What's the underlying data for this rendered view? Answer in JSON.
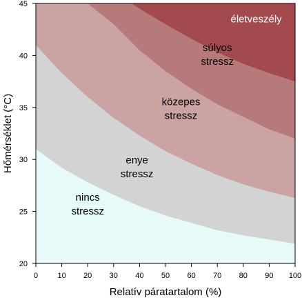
{
  "chart_data": {
    "type": "area",
    "title": "",
    "xlabel": "Relatív páratartalom (%)",
    "ylabel": "Hőmérséklet (°C)",
    "xlim": [
      0,
      100
    ],
    "ylim": [
      20,
      45
    ],
    "x_ticks": [
      0,
      10,
      20,
      30,
      40,
      50,
      60,
      70,
      80,
      90,
      100
    ],
    "y_ticks": [
      20,
      25,
      30,
      35,
      40,
      45
    ],
    "grid": false,
    "boundaries": [
      {
        "between": [
          "nincs stressz",
          "enye stressz"
        ],
        "x": [
          0,
          10,
          20,
          30,
          40,
          50,
          60,
          70,
          80,
          90,
          100
        ],
        "y": [
          31.0,
          29.2,
          27.8,
          26.6,
          25.5,
          24.6,
          23.9,
          23.2,
          22.7,
          22.3,
          21.9
        ]
      },
      {
        "between": [
          "enye stressz",
          "közepes stressz"
        ],
        "x": [
          0,
          10,
          20,
          30,
          40,
          50,
          60,
          70,
          80,
          90,
          100
        ],
        "y": [
          41.0,
          38.3,
          36.0,
          34.0,
          32.3,
          30.8,
          29.6,
          28.5,
          27.6,
          26.9,
          26.3
        ]
      },
      {
        "between": [
          "közepes stressz",
          "súlyos stressz"
        ],
        "x": [
          20,
          30,
          40,
          50,
          60,
          70,
          80,
          90,
          100
        ],
        "y": [
          45.0,
          43.0,
          40.5,
          38.5,
          36.8,
          35.3,
          34.1,
          32.9,
          32.0
        ]
      },
      {
        "between": [
          "súlyos stressz",
          "életveszély"
        ],
        "x": [
          37,
          40,
          50,
          60,
          70,
          80,
          90,
          100
        ],
        "y": [
          45.0,
          44.5,
          43.0,
          41.6,
          40.3,
          39.2,
          38.3,
          37.5
        ]
      }
    ],
    "zones": [
      {
        "label_lines": [
          "nincs",
          "stressz"
        ],
        "color": "#e6fafa"
      },
      {
        "label_lines": [
          "enye",
          "stressz"
        ],
        "color": "#d3d3d3"
      },
      {
        "label_lines": [
          "közepes",
          "stressz"
        ],
        "color": "#cba3a3"
      },
      {
        "label_lines": [
          "súlyos",
          "stressz"
        ],
        "color": "#b67a7a"
      },
      {
        "label_lines": [
          "életveszély"
        ],
        "color": "#a24a4e"
      }
    ],
    "zone_label_positions": [
      {
        "x": 20,
        "y": 25.7
      },
      {
        "x": 39,
        "y": 29.3
      },
      {
        "x": 56,
        "y": 34.9
      },
      {
        "x": 70,
        "y": 40.1
      },
      {
        "x": 85,
        "y": 43.5
      }
    ]
  }
}
